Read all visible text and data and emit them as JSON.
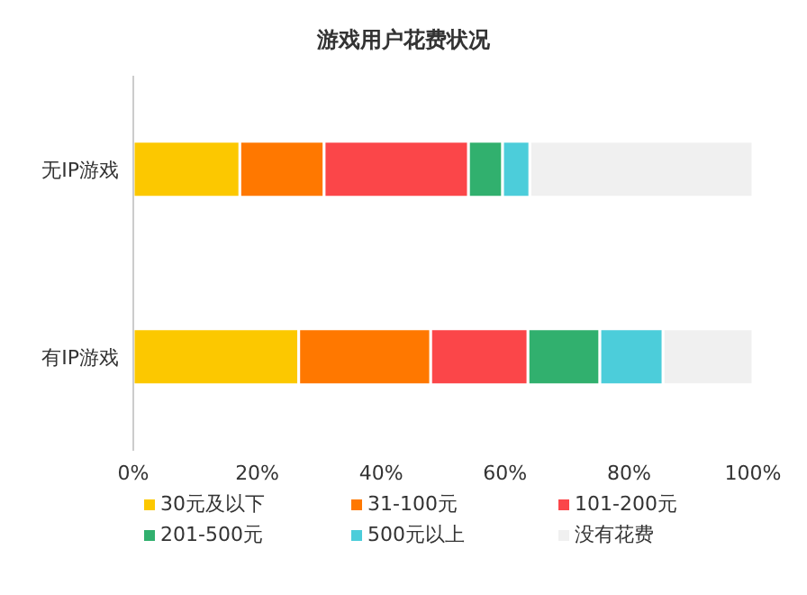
{
  "chart_data": {
    "type": "bar",
    "orientation": "horizontal",
    "stacked": true,
    "title": "游戏用户花费状况",
    "categories": [
      "无IP游戏",
      "有IP游戏"
    ],
    "series": [
      {
        "name": "30元及以下",
        "color": "#fcc800",
        "values": [
          17.2,
          26.7
        ]
      },
      {
        "name": "31-100元",
        "color": "#ff7800",
        "values": [
          13.6,
          21.3
        ]
      },
      {
        "name": "101-200元",
        "color": "#fb4649",
        "values": [
          23.3,
          15.7
        ]
      },
      {
        "name": "201-500元",
        "color": "#31b06e",
        "values": [
          5.5,
          11.6
        ]
      },
      {
        "name": "500元以上",
        "color": "#4ccdda",
        "values": [
          4.4,
          10.2
        ]
      },
      {
        "name": "没有花费",
        "color": "#f0f0f0",
        "values": [
          36.0,
          14.5
        ]
      }
    ],
    "xlim": [
      0,
      100
    ],
    "xticks": [
      {
        "value": 0,
        "label": "0%"
      },
      {
        "value": 20,
        "label": "20%"
      },
      {
        "value": 40,
        "label": "40%"
      },
      {
        "value": 60,
        "label": "60%"
      },
      {
        "value": 80,
        "label": "80%"
      },
      {
        "value": 100,
        "label": "100%"
      }
    ],
    "grid": false,
    "legend": "bottom"
  }
}
